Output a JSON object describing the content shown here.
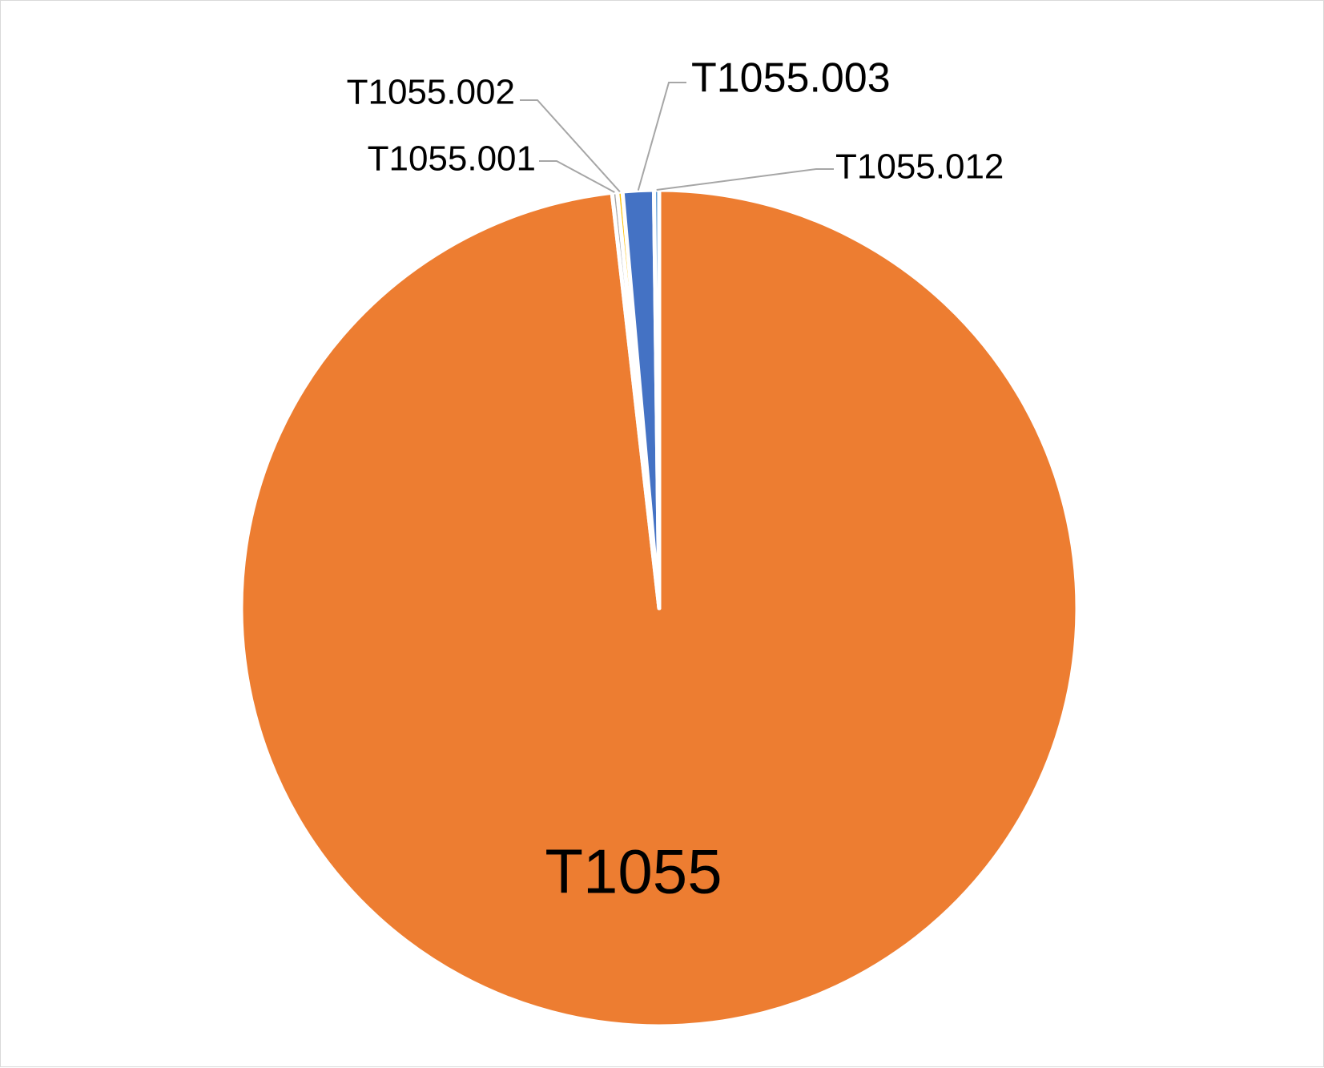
{
  "chart_data": {
    "type": "pie",
    "title": "",
    "start_angle_deg": 0,
    "direction": "clockwise",
    "legend": "none",
    "slices": [
      {
        "label": "T1055",
        "value": 98.2,
        "color": "#ED7D31"
      },
      {
        "label": "T1055.001",
        "value": 0.2,
        "color": "#A5A5A5"
      },
      {
        "label": "T1055.002",
        "value": 0.2,
        "color": "#FFC000"
      },
      {
        "label": "T1055.003",
        "value": 1.2,
        "color": "#4472C4"
      },
      {
        "label": "T1055.012",
        "value": 0.2,
        "color": "#5B9BD5"
      }
    ]
  }
}
